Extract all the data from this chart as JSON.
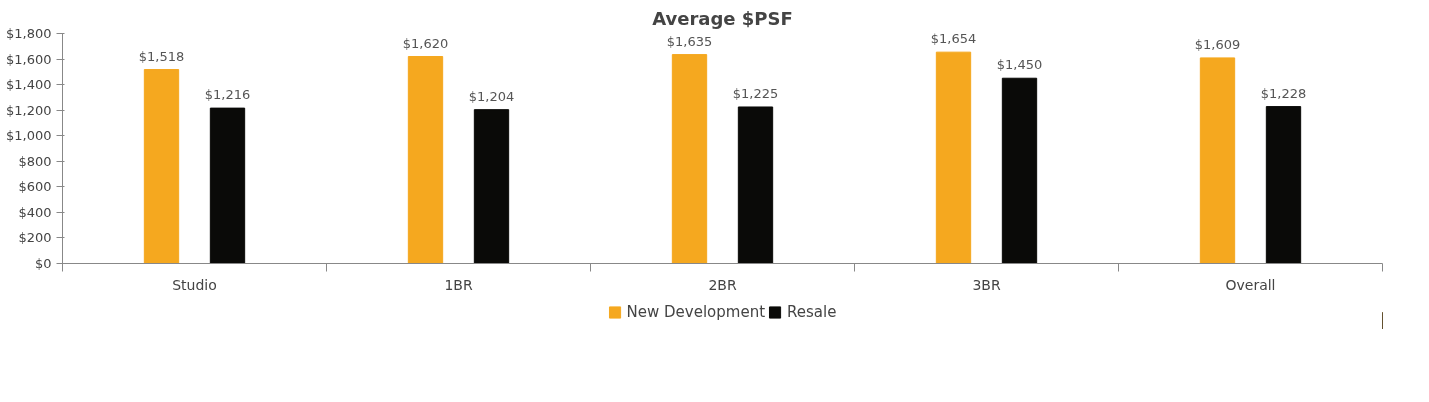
{
  "chart_data": {
    "type": "bar",
    "title": "Average $PSF",
    "categories": [
      "Studio",
      "1BR",
      "2BR",
      "3BR",
      "Overall"
    ],
    "series": [
      {
        "name": "New Development",
        "color": "#f5a81f",
        "values": [
          1518,
          1620,
          1635,
          1654,
          1609
        ],
        "value_labels": [
          "$1,518",
          "$1,620",
          "$1,635",
          "$1,654",
          "$1,609"
        ]
      },
      {
        "name": "Resale",
        "color": "#0a0a08",
        "values": [
          1216,
          1204,
          1225,
          1450,
          1228
        ],
        "value_labels": [
          "$1,216",
          "$1,204",
          "$1,225",
          "$1,450",
          "$1,228"
        ]
      }
    ],
    "ylim": [
      0,
      1800
    ],
    "yticks": [
      {
        "value": 0,
        "label": "$0"
      },
      {
        "value": 200,
        "label": "$200"
      },
      {
        "value": 400,
        "label": "$400"
      },
      {
        "value": 600,
        "label": "$600"
      },
      {
        "value": 800,
        "label": "$800"
      },
      {
        "value": 1000,
        "label": "$1,000"
      },
      {
        "value": 1200,
        "label": "$1,200"
      },
      {
        "value": 1400,
        "label": "$1,400"
      },
      {
        "value": 1600,
        "label": "$1,600"
      },
      {
        "value": 1800,
        "label": "$1,800"
      }
    ],
    "grid": false,
    "legend": "bottom"
  }
}
